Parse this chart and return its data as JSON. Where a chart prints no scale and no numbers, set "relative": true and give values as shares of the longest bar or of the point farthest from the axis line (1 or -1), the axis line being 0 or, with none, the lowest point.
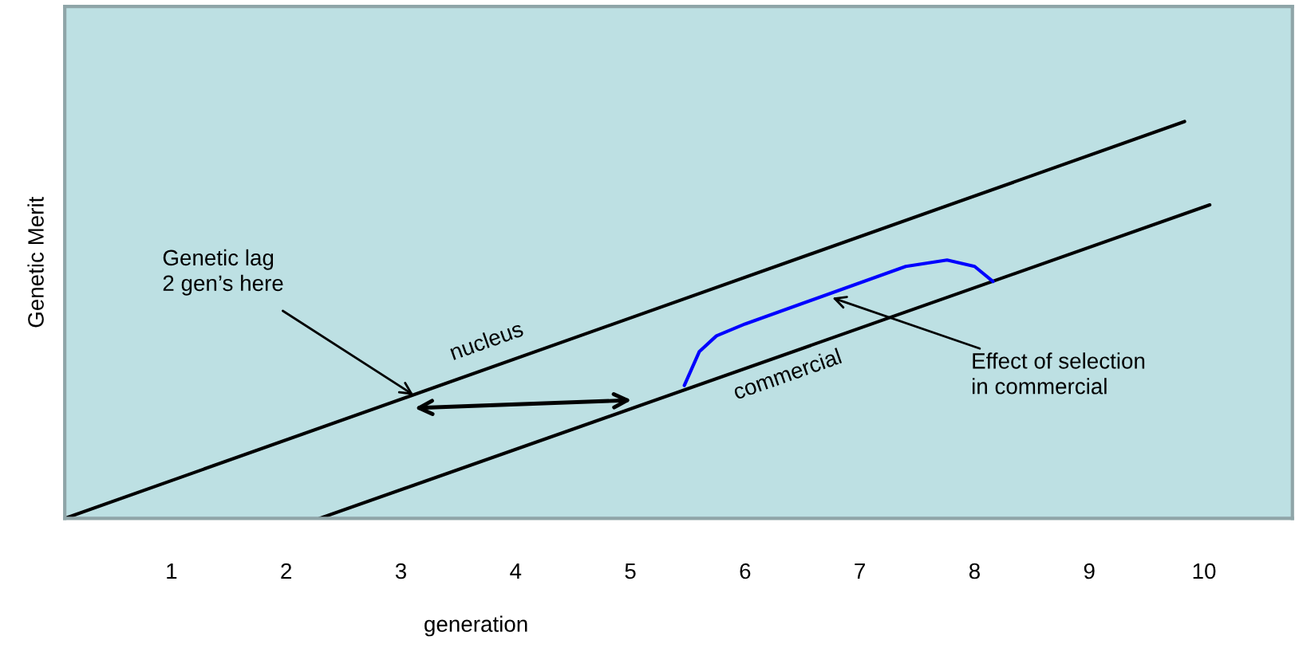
{
  "chart_data": {
    "type": "line",
    "relative": true,
    "xlabel": "generation",
    "ylabel": "Genetic Merit",
    "xlim": [
      0.07,
      10.77
    ],
    "xticks": [
      1,
      2,
      3,
      4,
      5,
      6,
      7,
      8,
      9,
      10
    ],
    "tick_labels": "x",
    "grid": false,
    "legend": false,
    "series": [
      {
        "name": "nucleus",
        "color": "#000000",
        "x": [
          0.07,
          9.83
        ],
        "values": [
          0,
          1
        ]
      },
      {
        "name": "commercial",
        "color": "#000000",
        "x": [
          2.29,
          10.05
        ],
        "values": [
          0,
          0.79
        ]
      },
      {
        "color": "#0000ff",
        "x": [
          5.47,
          5.6,
          5.75,
          6.0,
          7.4,
          7.76,
          8.0,
          8.16
        ],
        "values": [
          0.335,
          0.42,
          0.46,
          0.49,
          0.635,
          0.651,
          0.635,
          0.597
        ]
      }
    ],
    "annotations": [
      {
        "text": "Genetic lag\n2 gen’s here",
        "x": 3.11,
        "y": 0.311
      },
      {
        "text": "Effect of selection\nin commercial",
        "x": 6.76,
        "y": 0.556
      }
    ]
  }
}
